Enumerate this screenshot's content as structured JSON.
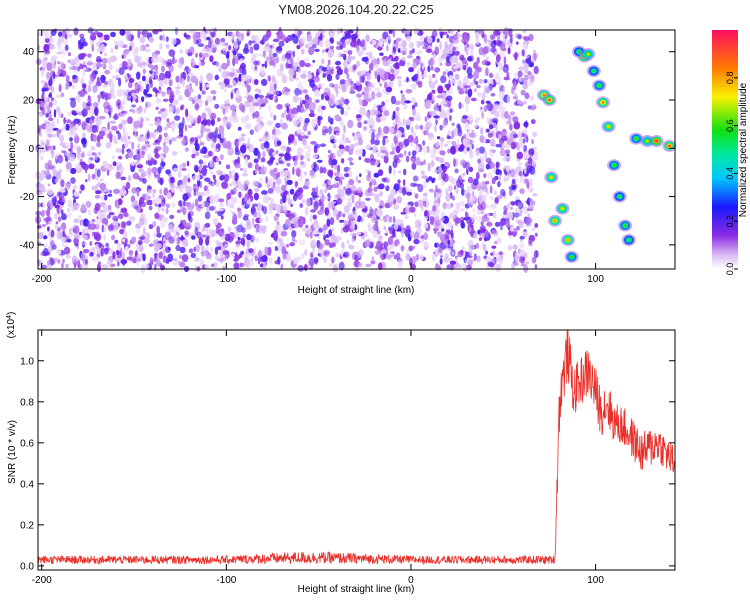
{
  "title": "YM08.2026.104.20.22.C25",
  "colors": {
    "background_cloud": "#8a2be2",
    "snr_line": "#e8302a",
    "axis": "#000000"
  },
  "chart_data": [
    {
      "type": "heatmap",
      "title": "YM08.2026.104.20.22.C25",
      "xlabel": "Height of straight line (km)",
      "ylabel": "Frequency (Hz)",
      "xlim": [
        -202,
        143
      ],
      "ylim": [
        -50,
        49
      ],
      "x_ticks": [
        -200,
        -100,
        0,
        100
      ],
      "y_ticks": [
        -40,
        -20,
        0,
        20,
        40
      ],
      "noise_region_x": [
        -202,
        68
      ],
      "signal_points": [
        {
          "x": 72,
          "y": 22,
          "v": 0.85
        },
        {
          "x": 75,
          "y": 20,
          "v": 0.9
        },
        {
          "x": 76,
          "y": -12,
          "v": 0.75
        },
        {
          "x": 78,
          "y": -30,
          "v": 0.8
        },
        {
          "x": 82,
          "y": -25,
          "v": 0.75
        },
        {
          "x": 85,
          "y": -38,
          "v": 0.8
        },
        {
          "x": 87,
          "y": -45,
          "v": 0.6
        },
        {
          "x": 91,
          "y": 40,
          "v": 0.55
        },
        {
          "x": 94,
          "y": 38,
          "v": 0.9
        },
        {
          "x": 96,
          "y": 39,
          "v": 0.7
        },
        {
          "x": 99,
          "y": 32,
          "v": 0.55
        },
        {
          "x": 102,
          "y": 26,
          "v": 0.6
        },
        {
          "x": 104,
          "y": 19,
          "v": 0.85
        },
        {
          "x": 107,
          "y": 9,
          "v": 0.75
        },
        {
          "x": 110,
          "y": -7,
          "v": 0.6
        },
        {
          "x": 113,
          "y": -20,
          "v": 0.55
        },
        {
          "x": 116,
          "y": -32,
          "v": 0.6
        },
        {
          "x": 118,
          "y": -38,
          "v": 0.55
        },
        {
          "x": 122,
          "y": 4,
          "v": 0.6
        },
        {
          "x": 128,
          "y": 3,
          "v": 0.7
        },
        {
          "x": 133,
          "y": 3,
          "v": 0.95
        },
        {
          "x": 140,
          "y": 1,
          "v": 0.9
        }
      ],
      "colorbar": {
        "label": "Normalized spectral amplitude",
        "range": [
          0,
          1
        ],
        "ticks": [
          0.0,
          0.2,
          0.4,
          0.6,
          0.8
        ]
      }
    },
    {
      "type": "line",
      "xlabel": "Height of straight line (km)",
      "ylabel": "SNR (10 * v/v)",
      "y_scale_label": "(x10",
      "y_scale_exponent": "4",
      "y_scale_suffix": ")",
      "xlim": [
        -202,
        143
      ],
      "ylim": [
        -0.02,
        1.15
      ],
      "x_ticks": [
        -200,
        -100,
        0,
        100
      ],
      "y_ticks": [
        0.0,
        0.2,
        0.4,
        0.6,
        0.8,
        1.0
      ],
      "series": [
        {
          "x": [
            -202,
            -150,
            -100,
            -60,
            -50,
            0,
            50,
            78,
            79,
            80,
            81,
            83,
            85,
            88,
            92,
            96,
            100,
            103,
            106,
            110,
            115,
            120,
            125,
            130,
            134,
            138,
            143
          ],
          "y": [
            0.03,
            0.03,
            0.03,
            0.04,
            0.04,
            0.03,
            0.03,
            0.03,
            0.35,
            0.7,
            0.85,
            0.95,
            1.05,
            0.85,
            0.9,
            0.95,
            0.85,
            0.75,
            0.8,
            0.7,
            0.68,
            0.62,
            0.55,
            0.58,
            0.6,
            0.55,
            0.5
          ],
          "band": [
            0.02,
            0.02,
            0.02,
            0.03,
            0.03,
            0.02,
            0.02,
            0.02,
            0.12,
            0.12,
            0.12,
            0.14,
            0.14,
            0.12,
            0.12,
            0.13,
            0.12,
            0.12,
            0.12,
            0.1,
            0.1,
            0.1,
            0.1,
            0.1,
            0.09,
            0.09,
            0.08
          ]
        }
      ]
    }
  ]
}
